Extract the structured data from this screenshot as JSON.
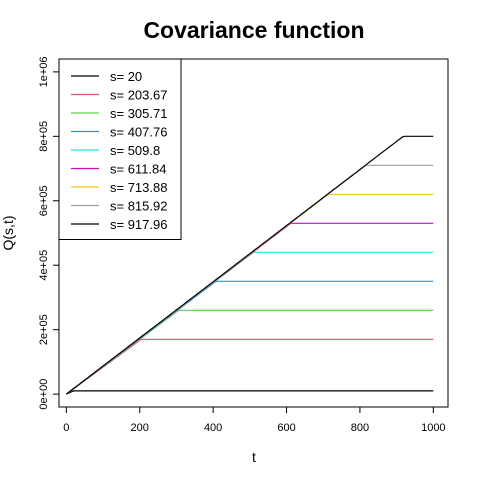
{
  "chart_data": {
    "type": "line",
    "title": "Covariance function",
    "xlabel": "t",
    "ylabel": "Q(s,t)",
    "xlim": [
      -20,
      1040
    ],
    "ylim": [
      -40000,
      1040000
    ],
    "x_ticks": [
      0,
      200,
      400,
      600,
      800,
      1000
    ],
    "x_tick_labels": [
      "0",
      "200",
      "400",
      "600",
      "800",
      "1000"
    ],
    "y_ticks": [
      0,
      200000,
      400000,
      600000,
      800000,
      1000000
    ],
    "y_tick_labels": [
      "0e+00",
      "2e+05",
      "4e+05",
      "6e+05",
      "8e+05",
      "1e+06"
    ],
    "legend_position": "top-left",
    "grid": false,
    "series": [
      {
        "name": "s= 20",
        "s": 20,
        "plateau": 10000,
        "color": "#000000"
      },
      {
        "name": "s= 203.67",
        "s": 203.67,
        "plateau": 170000,
        "color": "#DF536B"
      },
      {
        "name": "s= 305.71",
        "s": 305.71,
        "plateau": 260000,
        "color": "#61D04F"
      },
      {
        "name": "s= 407.76",
        "s": 407.76,
        "plateau": 350000,
        "color": "#2297E6"
      },
      {
        "name": "s= 509.8",
        "s": 509.8,
        "plateau": 440000,
        "color": "#28E2E5"
      },
      {
        "name": "s= 611.84",
        "s": 611.84,
        "plateau": 530000,
        "color": "#CD0BBC"
      },
      {
        "name": "s= 713.88",
        "s": 713.88,
        "plateau": 620000,
        "color": "#F5C710"
      },
      {
        "name": "s= 815.92",
        "s": 815.92,
        "plateau": 710000,
        "color": "#9E9E9E"
      },
      {
        "name": "s= 917.96",
        "s": 917.96,
        "plateau": 800000,
        "color": "#000000"
      }
    ]
  }
}
